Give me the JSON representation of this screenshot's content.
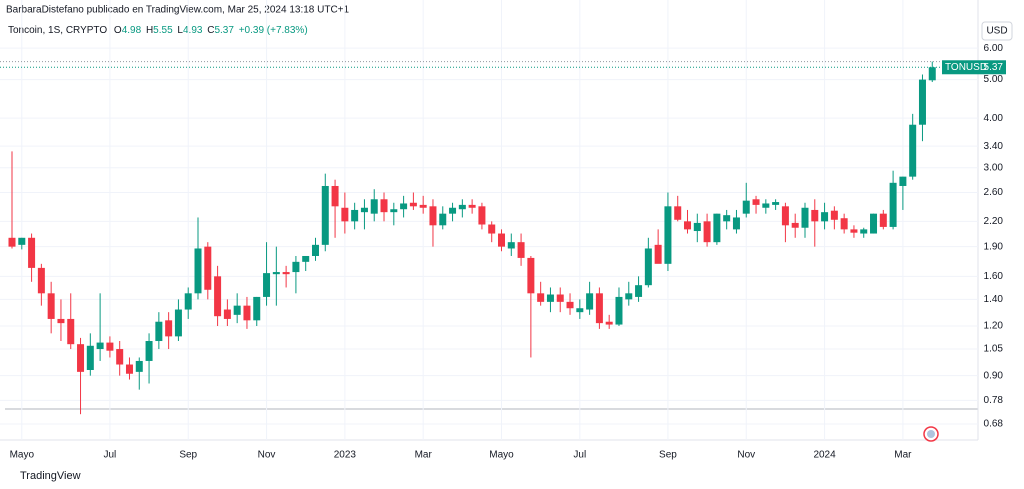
{
  "header": {
    "author_line": "BarbaraDistefano publicado en TradingView.com, Mar 25, 2024 13:18 UTC+1",
    "symbol_line": "Toncoin, 1S, CRYPTO",
    "ohlc_labels": [
      "O",
      "H",
      "L",
      "C"
    ],
    "ohlc_values": [
      4.98,
      5.55,
      4.93,
      5.37
    ],
    "change": "+0.39 (+7.83%)",
    "currency": "USD"
  },
  "footer": {
    "brand": "TradingView"
  },
  "chart_data": {
    "type": "candlestick",
    "symbol": "TONUSD",
    "log_scale": true,
    "up_color": "#089981",
    "down_color": "#f23645",
    "categories": [
      null,
      "Mayo",
      null,
      null,
      null,
      null,
      null,
      null,
      null,
      null,
      "Jul",
      null,
      null,
      null,
      null,
      null,
      null,
      null,
      "Sep",
      null,
      null,
      null,
      null,
      null,
      null,
      null,
      "Nov",
      null,
      null,
      null,
      null,
      null,
      null,
      null,
      "2023",
      null,
      null,
      null,
      null,
      null,
      null,
      null,
      "Mar",
      null,
      null,
      null,
      null,
      null,
      null,
      null,
      "Mayo",
      null,
      null,
      null,
      null,
      null,
      null,
      null,
      "Jul",
      null,
      null,
      null,
      null,
      null,
      null,
      null,
      null,
      "Sep",
      null,
      null,
      null,
      null,
      null,
      null,
      null,
      "Nov",
      null,
      null,
      null,
      null,
      null,
      null,
      null,
      "2024",
      null,
      null,
      null,
      null,
      null,
      null,
      null,
      "Mar",
      null,
      null,
      null
    ],
    "open": [
      2.0,
      1.92,
      2.0,
      1.68,
      1.45,
      1.25,
      1.25,
      1.08,
      0.93,
      1.05,
      1.09,
      1.05,
      0.96,
      0.92,
      0.98,
      1.1,
      1.24,
      1.13,
      1.32,
      1.45,
      1.9,
      1.6,
      1.32,
      1.28,
      1.35,
      1.24,
      1.42,
      1.62,
      1.64,
      1.64,
      1.74,
      1.8,
      1.92,
      2.7,
      2.38,
      2.2,
      2.32,
      2.3,
      2.5,
      2.32,
      2.36,
      2.45,
      2.42,
      2.4,
      2.15,
      2.3,
      2.36,
      2.42,
      2.4,
      2.16,
      2.05,
      1.88,
      1.95,
      1.78,
      1.45,
      1.38,
      1.44,
      1.38,
      1.3,
      1.32,
      1.45,
      1.23,
      1.21,
      1.4,
      1.42,
      1.52,
      1.92,
      1.72,
      2.4,
      2.2,
      2.08,
      2.2,
      1.95,
      2.2,
      2.1,
      2.3,
      2.5,
      2.38,
      2.42,
      2.4,
      2.18,
      2.12,
      2.35,
      2.2,
      2.34,
      2.24,
      2.1,
      2.05,
      2.05,
      2.3,
      2.13,
      2.7,
      2.85,
      3.85,
      4.98
    ],
    "high": [
      3.3,
      2.0,
      2.05,
      1.72,
      1.55,
      1.4,
      1.45,
      1.12,
      1.15,
      1.45,
      1.13,
      1.1,
      1.0,
      1.0,
      1.15,
      1.3,
      1.3,
      1.4,
      1.5,
      2.25,
      1.95,
      1.7,
      1.4,
      1.45,
      1.42,
      1.42,
      1.95,
      1.9,
      1.7,
      1.8,
      1.8,
      2.0,
      2.9,
      2.8,
      2.6,
      2.45,
      2.5,
      2.65,
      2.6,
      2.45,
      2.55,
      2.6,
      2.55,
      2.5,
      2.4,
      2.45,
      2.5,
      2.5,
      2.45,
      2.2,
      2.1,
      2.05,
      2.05,
      1.8,
      1.55,
      1.5,
      1.5,
      1.45,
      1.4,
      1.55,
      1.5,
      1.28,
      1.5,
      1.55,
      1.6,
      2.0,
      2.1,
      2.6,
      2.55,
      2.35,
      2.3,
      2.3,
      2.3,
      2.35,
      2.35,
      2.75,
      2.55,
      2.5,
      2.5,
      2.45,
      2.3,
      2.45,
      2.5,
      2.45,
      2.4,
      2.3,
      2.15,
      2.12,
      2.3,
      2.35,
      2.95,
      2.85,
      4.1,
      5.15,
      5.55
    ],
    "low": [
      1.88,
      1.87,
      1.55,
      1.35,
      1.15,
      1.1,
      1.05,
      0.72,
      0.9,
      0.98,
      1.0,
      0.9,
      0.88,
      0.83,
      0.86,
      1.05,
      1.05,
      1.1,
      1.25,
      1.4,
      1.4,
      1.2,
      1.2,
      1.22,
      1.18,
      1.2,
      1.35,
      1.35,
      1.5,
      1.45,
      1.65,
      1.75,
      1.85,
      2.0,
      2.05,
      2.1,
      2.1,
      2.2,
      2.2,
      2.15,
      2.25,
      2.35,
      2.3,
      1.9,
      2.1,
      2.2,
      2.25,
      2.3,
      2.1,
      1.95,
      1.85,
      1.8,
      1.7,
      1.0,
      1.35,
      1.3,
      1.3,
      1.28,
      1.25,
      1.28,
      1.18,
      1.18,
      1.2,
      1.35,
      1.38,
      1.5,
      1.75,
      1.65,
      2.2,
      2.05,
      1.95,
      1.9,
      1.92,
      2.1,
      2.05,
      2.25,
      2.3,
      2.3,
      2.35,
      1.95,
      2.0,
      2.0,
      1.9,
      2.1,
      2.1,
      2.05,
      2.0,
      2.0,
      2.05,
      2.1,
      2.1,
      2.35,
      2.8,
      3.5,
      4.93
    ],
    "close": [
      1.9,
      2.0,
      1.68,
      1.45,
      1.25,
      1.22,
      1.08,
      0.92,
      1.07,
      1.09,
      1.04,
      0.96,
      0.91,
      0.98,
      1.1,
      1.23,
      1.13,
      1.32,
      1.45,
      1.88,
      1.48,
      1.27,
      1.25,
      1.35,
      1.24,
      1.42,
      1.63,
      1.64,
      1.62,
      1.74,
      1.8,
      1.92,
      2.7,
      2.4,
      2.2,
      2.35,
      2.38,
      2.5,
      2.32,
      2.36,
      2.44,
      2.4,
      2.38,
      2.15,
      2.3,
      2.38,
      2.42,
      2.38,
      2.16,
      2.05,
      1.9,
      1.95,
      1.78,
      1.45,
      1.38,
      1.44,
      1.38,
      1.33,
      1.33,
      1.45,
      1.22,
      1.21,
      1.42,
      1.45,
      1.52,
      1.88,
      1.72,
      2.4,
      2.22,
      2.1,
      2.18,
      1.95,
      2.3,
      2.28,
      2.25,
      2.48,
      2.42,
      2.44,
      2.46,
      2.15,
      2.12,
      2.38,
      2.2,
      2.32,
      2.22,
      2.1,
      2.06,
      2.1,
      2.3,
      2.13,
      2.75,
      2.85,
      3.85,
      5.0,
      5.37
    ],
    "ylim": [
      0.62,
      6.98
    ],
    "yticks": [
      {
        "value": 6,
        "label": "6.00"
      },
      {
        "value": 5,
        "label": "5.00"
      },
      {
        "value": 4,
        "label": "4.00"
      },
      {
        "value": 3.4,
        "label": "3.40"
      },
      {
        "value": 3,
        "label": "3.00"
      },
      {
        "value": 2.6,
        "label": "2.60"
      },
      {
        "value": 2.2,
        "label": "2.20"
      },
      {
        "value": 1.9,
        "label": "1.90"
      },
      {
        "value": 1.6,
        "label": "1.60"
      },
      {
        "value": 1.4,
        "label": "1.40"
      },
      {
        "value": 1.2,
        "label": "1.20"
      },
      1.05,
      {
        "value": 0.9,
        "label": "0.90"
      },
      0.78,
      0.68
    ],
    "grid": true
  }
}
